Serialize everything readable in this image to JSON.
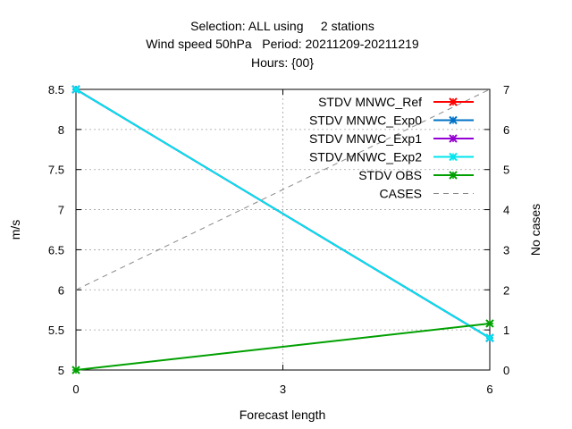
{
  "chart_data": {
    "type": "line",
    "title_lines": [
      "Selection: ALL using     2 stations",
      "Wind speed 50hPa   Period: 20211209-20211219",
      "Hours: {00}"
    ],
    "xlabel": "Forecast length",
    "ylabel": "m/s",
    "y2label": "No cases",
    "x_ticks": [
      0,
      3,
      6
    ],
    "y_ticks": [
      "5",
      "5.5",
      "6",
      "6.5",
      "7",
      "7.5",
      "8",
      "8.5"
    ],
    "y2_ticks": [
      "0",
      "1",
      "2",
      "3",
      "4",
      "5",
      "6",
      "7"
    ],
    "xlim": [
      0,
      6
    ],
    "ylim": [
      5,
      8.5
    ],
    "y2lim": [
      0,
      7
    ],
    "grid": true,
    "legend_position": "top-right",
    "series": [
      {
        "name": "STDV MNWC_Ref",
        "color": "#ff0000",
        "axis": "y",
        "x": [
          0,
          6
        ],
        "values": [
          8.5,
          5.4
        ],
        "marker": true
      },
      {
        "name": "STDV MNWC_Exp0",
        "color": "#0072c6",
        "axis": "y",
        "x": [
          0,
          6
        ],
        "values": [
          8.5,
          5.4
        ],
        "marker": true
      },
      {
        "name": "STDV MNWC_Exp1",
        "color": "#9400d3",
        "axis": "y",
        "x": [
          0,
          6
        ],
        "values": [
          8.5,
          5.4
        ],
        "marker": true
      },
      {
        "name": "STDV MNWC_Exp2",
        "color": "#00e5ee",
        "axis": "y",
        "x": [
          0,
          6
        ],
        "values": [
          8.5,
          5.4
        ],
        "marker": true
      },
      {
        "name": "STDV OBS",
        "color": "#00a000",
        "axis": "y",
        "x": [
          0,
          6
        ],
        "values": [
          5.0,
          5.58
        ],
        "marker": true
      },
      {
        "name": "CASES",
        "color": "#888888",
        "axis": "y2",
        "x": [
          0,
          6
        ],
        "values": [
          2,
          7
        ],
        "marker": false,
        "dashed": true
      }
    ]
  }
}
